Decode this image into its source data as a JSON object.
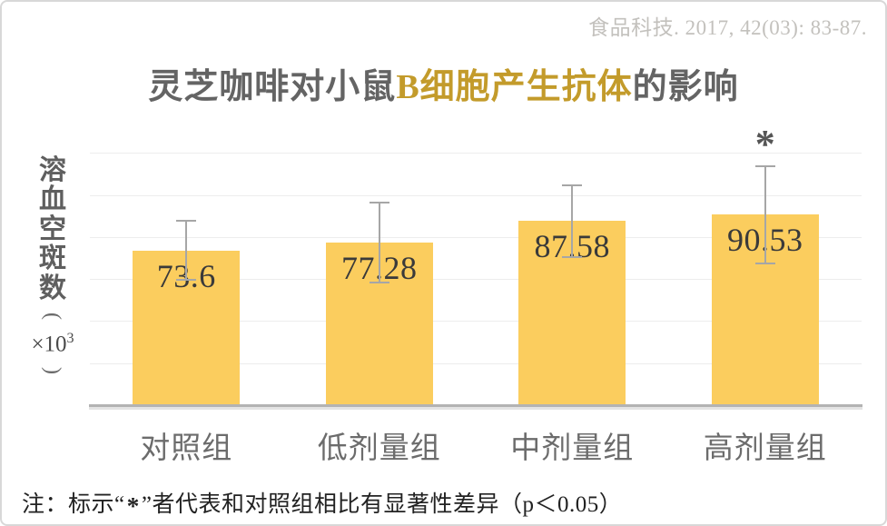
{
  "citation": "食品科技. 2017, 42(03): 83-87.",
  "title": {
    "part1": "灵芝咖啡对小鼠",
    "part2": "B细胞产生抗体",
    "part3": "的影响"
  },
  "y_axis": {
    "chars": [
      "溶",
      "血",
      "空",
      "斑",
      "数"
    ],
    "paren_open": "(",
    "multiplier": "×10",
    "exponent": "3",
    "paren_close": ")"
  },
  "note": {
    "prefix": "注：标示“",
    "asterisk": "*",
    "suffix": "”者代表和对照组相比有显著性差异（p＜0.05）"
  },
  "colors": {
    "bar": "#fbcd5e",
    "title_gray": "#646464",
    "title_gold": "#c39b2b",
    "citation": "#c3c1bd",
    "gridline": "#ededed",
    "axis": "#b3b3b3",
    "error_bar": "#a6a6a6",
    "value_label": "#3a3a3a",
    "x_label": "#6c6c6c",
    "note_text": "#222222"
  },
  "chart_data": {
    "type": "bar",
    "title": "灵芝咖啡对小鼠B细胞产生抗体的影响",
    "ylabel": "溶血空斑数（×10³）",
    "categories": [
      "对照组",
      "低剂量组",
      "中剂量组",
      "高剂量组"
    ],
    "values": [
      73.6,
      77.28,
      87.58,
      90.53
    ],
    "errors": [
      14,
      19,
      17,
      23
    ],
    "significance": [
      false,
      false,
      false,
      true
    ],
    "sig_symbol": "*",
    "value_labels": "inside-top",
    "ylim": [
      0,
      127
    ],
    "gridline_values": [
      20,
      40,
      60,
      80,
      100,
      120
    ],
    "grid": true,
    "legend": "none",
    "bar_color": "#fbcd5e",
    "footnote": "注：标示“*”者代表和对照组相比有显著性差异（p＜0.05）"
  }
}
